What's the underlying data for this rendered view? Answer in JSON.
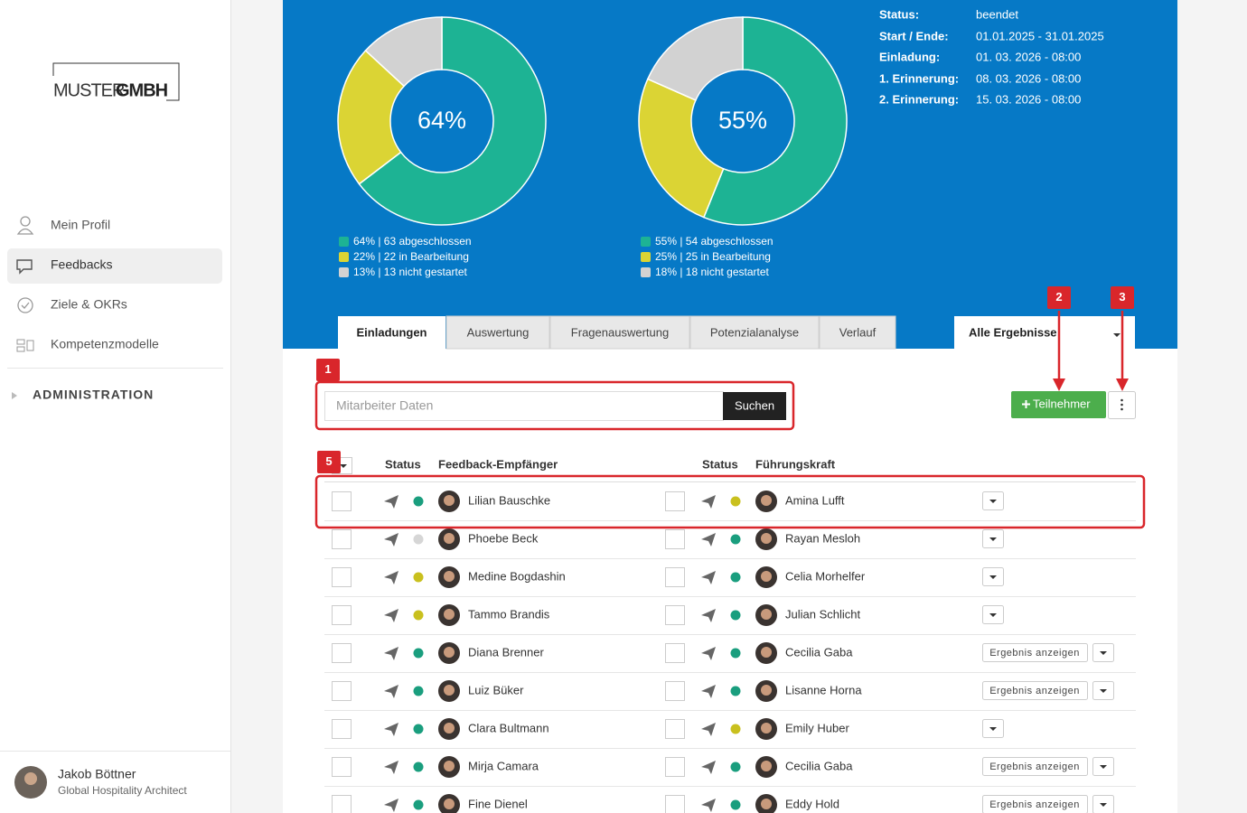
{
  "logo": {
    "left": "MUSTER",
    "right": "GMBH"
  },
  "nav": [
    "Mein Profil",
    "Feedbacks",
    "Ziele & OKRs",
    "Kompetenzmodelle"
  ],
  "admin": "ADMINISTRATION",
  "user": {
    "name": "Jakob Böttner",
    "role": "Global Hospitality Architect"
  },
  "chart_data": [
    {
      "type": "pie",
      "center_label": "64%",
      "values": [
        64,
        22,
        13
      ],
      "colors": [
        "#1db394",
        "#dbd434",
        "#d2d2d2"
      ],
      "legend": [
        "64% | 63 abgeschlossen",
        "22% | 22 in Bearbeitung",
        "13% | 13 nicht gestartet"
      ]
    },
    {
      "type": "pie",
      "center_label": "55%",
      "values": [
        55,
        25,
        18
      ],
      "colors": [
        "#1db394",
        "#dbd434",
        "#d2d2d2"
      ],
      "legend": [
        "55% | 54 abgeschlossen",
        "25% | 25 in Bearbeitung",
        "18% | 18 nicht gestartet"
      ]
    }
  ],
  "info": [
    [
      "Status:",
      "beendet"
    ],
    [
      "Start / Ende:",
      "01.01.2025 - 31.01.2025"
    ],
    [
      "Einladung:",
      "01. 03. 2026 - 08:00"
    ],
    [
      "1. Erinnerung:",
      "08. 03. 2026 - 08:00"
    ],
    [
      "2. Erinnerung:",
      "15. 03. 2026 - 08:00"
    ]
  ],
  "tabs": [
    "Einladungen",
    "Auswertung",
    "Fragenauswertung",
    "Potenzialanalyse",
    "Verlauf"
  ],
  "filter": "Alle Ergebnisse",
  "search": {
    "placeholder": "Mitarbeiter Daten",
    "button": "Suchen"
  },
  "add_button": "Teilnehmer",
  "annotations": [
    "1",
    "2",
    "3",
    "5"
  ],
  "table": {
    "headers": [
      "Status",
      "Feedback-Empfänger",
      "Status",
      "Führungskraft"
    ],
    "rows": [
      {
        "recipient": "Lilian Bauschke",
        "recipient_status": "#1a9e7e",
        "manager": "Amina Lufft",
        "manager_status": "#c9c01e"
      },
      {
        "recipient": "Phoebe Beck",
        "recipient_status": "#d6d6d6",
        "manager": "Rayan Mesloh",
        "manager_status": "#1a9e7e"
      },
      {
        "recipient": "Medine Bogdashin",
        "recipient_status": "#c9c01e",
        "manager": "Celia Morhelfer",
        "manager_status": "#1a9e7e"
      },
      {
        "recipient": "Tammo Brandis",
        "recipient_status": "#c9c01e",
        "manager": "Julian Schlicht",
        "manager_status": "#1a9e7e"
      },
      {
        "recipient": "Diana Brenner",
        "recipient_status": "#1a9e7e",
        "manager": "Cecilia Gaba",
        "manager_status": "#1a9e7e",
        "action": "Ergebnis anzeigen"
      },
      {
        "recipient": "Luiz Büker",
        "recipient_status": "#1a9e7e",
        "manager": "Lisanne Horna",
        "manager_status": "#1a9e7e",
        "action": "Ergebnis anzeigen"
      },
      {
        "recipient": "Clara Bultmann",
        "recipient_status": "#1a9e7e",
        "manager": "Emily Huber",
        "manager_status": "#c9c01e"
      },
      {
        "recipient": "Mirja Camara",
        "recipient_status": "#1a9e7e",
        "manager": "Cecilia Gaba",
        "manager_status": "#1a9e7e",
        "action": "Ergebnis anzeigen"
      },
      {
        "recipient": "Fine Dienel",
        "recipient_status": "#1a9e7e",
        "manager": "Eddy Hold",
        "manager_status": "#1a9e7e",
        "action": "Ergebnis anzeigen"
      }
    ]
  }
}
